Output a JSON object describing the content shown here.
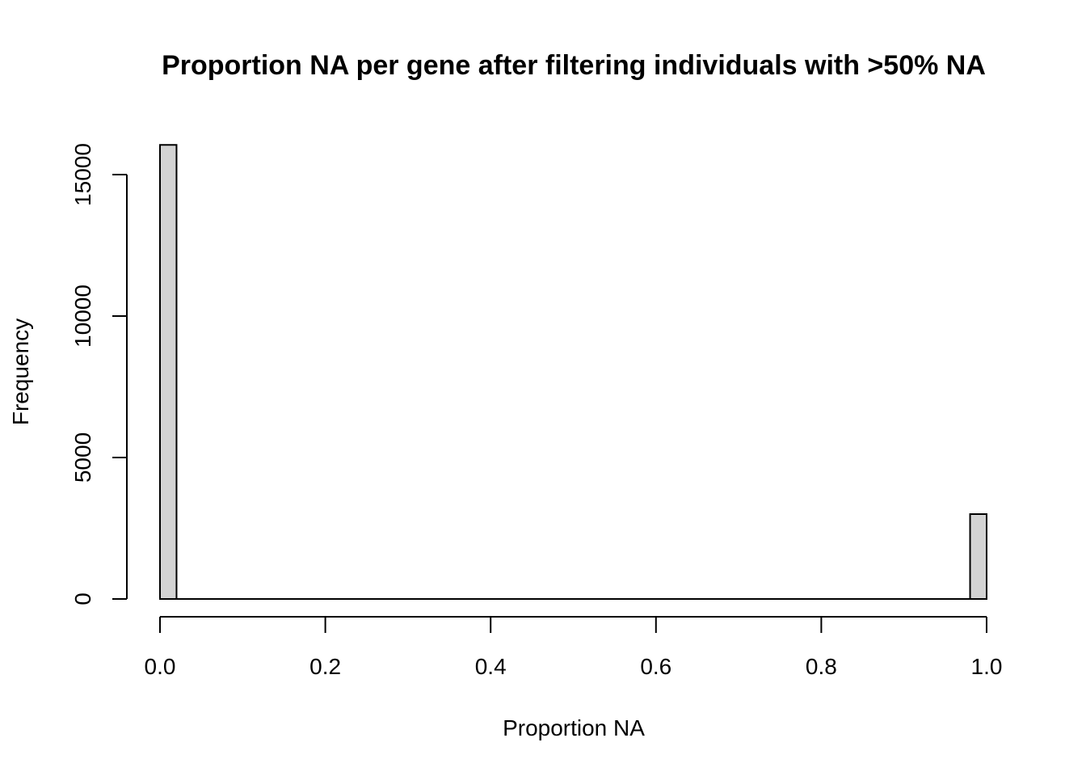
{
  "chart_data": {
    "type": "bar",
    "title": "Proportion NA per gene after filtering individuals with >50% NA",
    "xlabel": "Proportion NA",
    "ylabel": "Frequency",
    "x_ticks": [
      "0.0",
      "0.2",
      "0.4",
      "0.6",
      "0.8",
      "1.0"
    ],
    "x_tick_values": [
      0.0,
      0.2,
      0.4,
      0.6,
      0.8,
      1.0
    ],
    "y_ticks": [
      "0",
      "5000",
      "10000",
      "15000"
    ],
    "y_tick_values": [
      0,
      5000,
      10000,
      15000
    ],
    "xlim": [
      0,
      1
    ],
    "ylim": [
      0,
      15000
    ],
    "bin_width": 0.02,
    "bins": [
      {
        "x0": 0.0,
        "x1": 0.02,
        "count": 16050
      },
      {
        "x0": 0.98,
        "x1": 1.0,
        "count": 3000
      }
    ],
    "bar_fill": "#d3d3d3",
    "bar_stroke": "#000000",
    "grid": false,
    "legend": "none"
  }
}
